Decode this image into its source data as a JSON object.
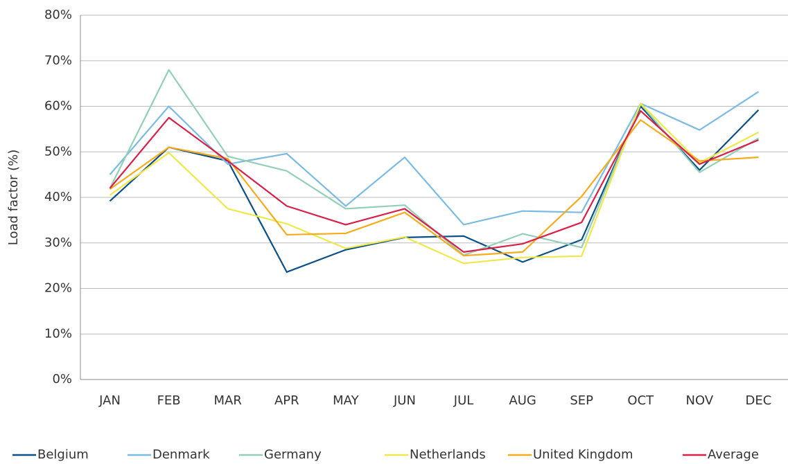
{
  "chart_data": {
    "type": "line",
    "y_axis_label": "Load factor (%)",
    "categories": [
      "JAN",
      "FEB",
      "MAR",
      "APR",
      "MAY",
      "JUN",
      "JUL",
      "AUG",
      "SEP",
      "OCT",
      "NOV",
      "DEC"
    ],
    "series": [
      {
        "name": "Belgium",
        "color": "#0b4f87",
        "values": [
          39.2,
          51,
          48,
          23.6,
          28.5,
          31.2,
          31.5,
          25.8,
          30.7,
          60,
          46,
          59.2
        ]
      },
      {
        "name": "Denmark",
        "color": "#7bbbe3",
        "values": [
          45,
          60,
          47.3,
          49.6,
          38.1,
          48.8,
          34,
          37,
          36.7,
          60.6,
          54.8,
          63.2
        ]
      },
      {
        "name": "Germany",
        "color": "#93cfb6",
        "values": [
          42,
          68,
          49,
          45.8,
          37.5,
          38.3,
          27.3,
          32,
          29,
          60.5,
          45.5,
          53
        ]
      },
      {
        "name": "Netherlands",
        "color": "#eee84c",
        "values": [
          40.5,
          49.8,
          37.5,
          34.2,
          28.8,
          31.3,
          25.5,
          26.8,
          27.1,
          60.6,
          47.6,
          54.3
        ]
      },
      {
        "name": "United Kingdom",
        "color": "#f5ab1e",
        "values": [
          41.8,
          51,
          48.5,
          31.8,
          32.1,
          36.7,
          27.2,
          28,
          40.2,
          57,
          48,
          48.8
        ]
      },
      {
        "name": "Average",
        "color": "#d81f48",
        "values": [
          42,
          57.5,
          48,
          38.1,
          34,
          37.5,
          28,
          29.8,
          34.5,
          59,
          47.3,
          52.6
        ]
      }
    ],
    "ylim": [
      0,
      80
    ],
    "yticks": [
      {
        "value": 0,
        "label": "0%"
      },
      {
        "value": 10,
        "label": "10%"
      },
      {
        "value": 20,
        "label": "20%"
      },
      {
        "value": 30,
        "label": "30%"
      },
      {
        "value": 40,
        "label": "40%"
      },
      {
        "value": 50,
        "label": "50%"
      },
      {
        "value": 60,
        "label": "60%"
      },
      {
        "value": 70,
        "label": "70%"
      },
      {
        "value": 80,
        "label": "80%"
      }
    ],
    "grid": true,
    "legend": "bottom"
  }
}
